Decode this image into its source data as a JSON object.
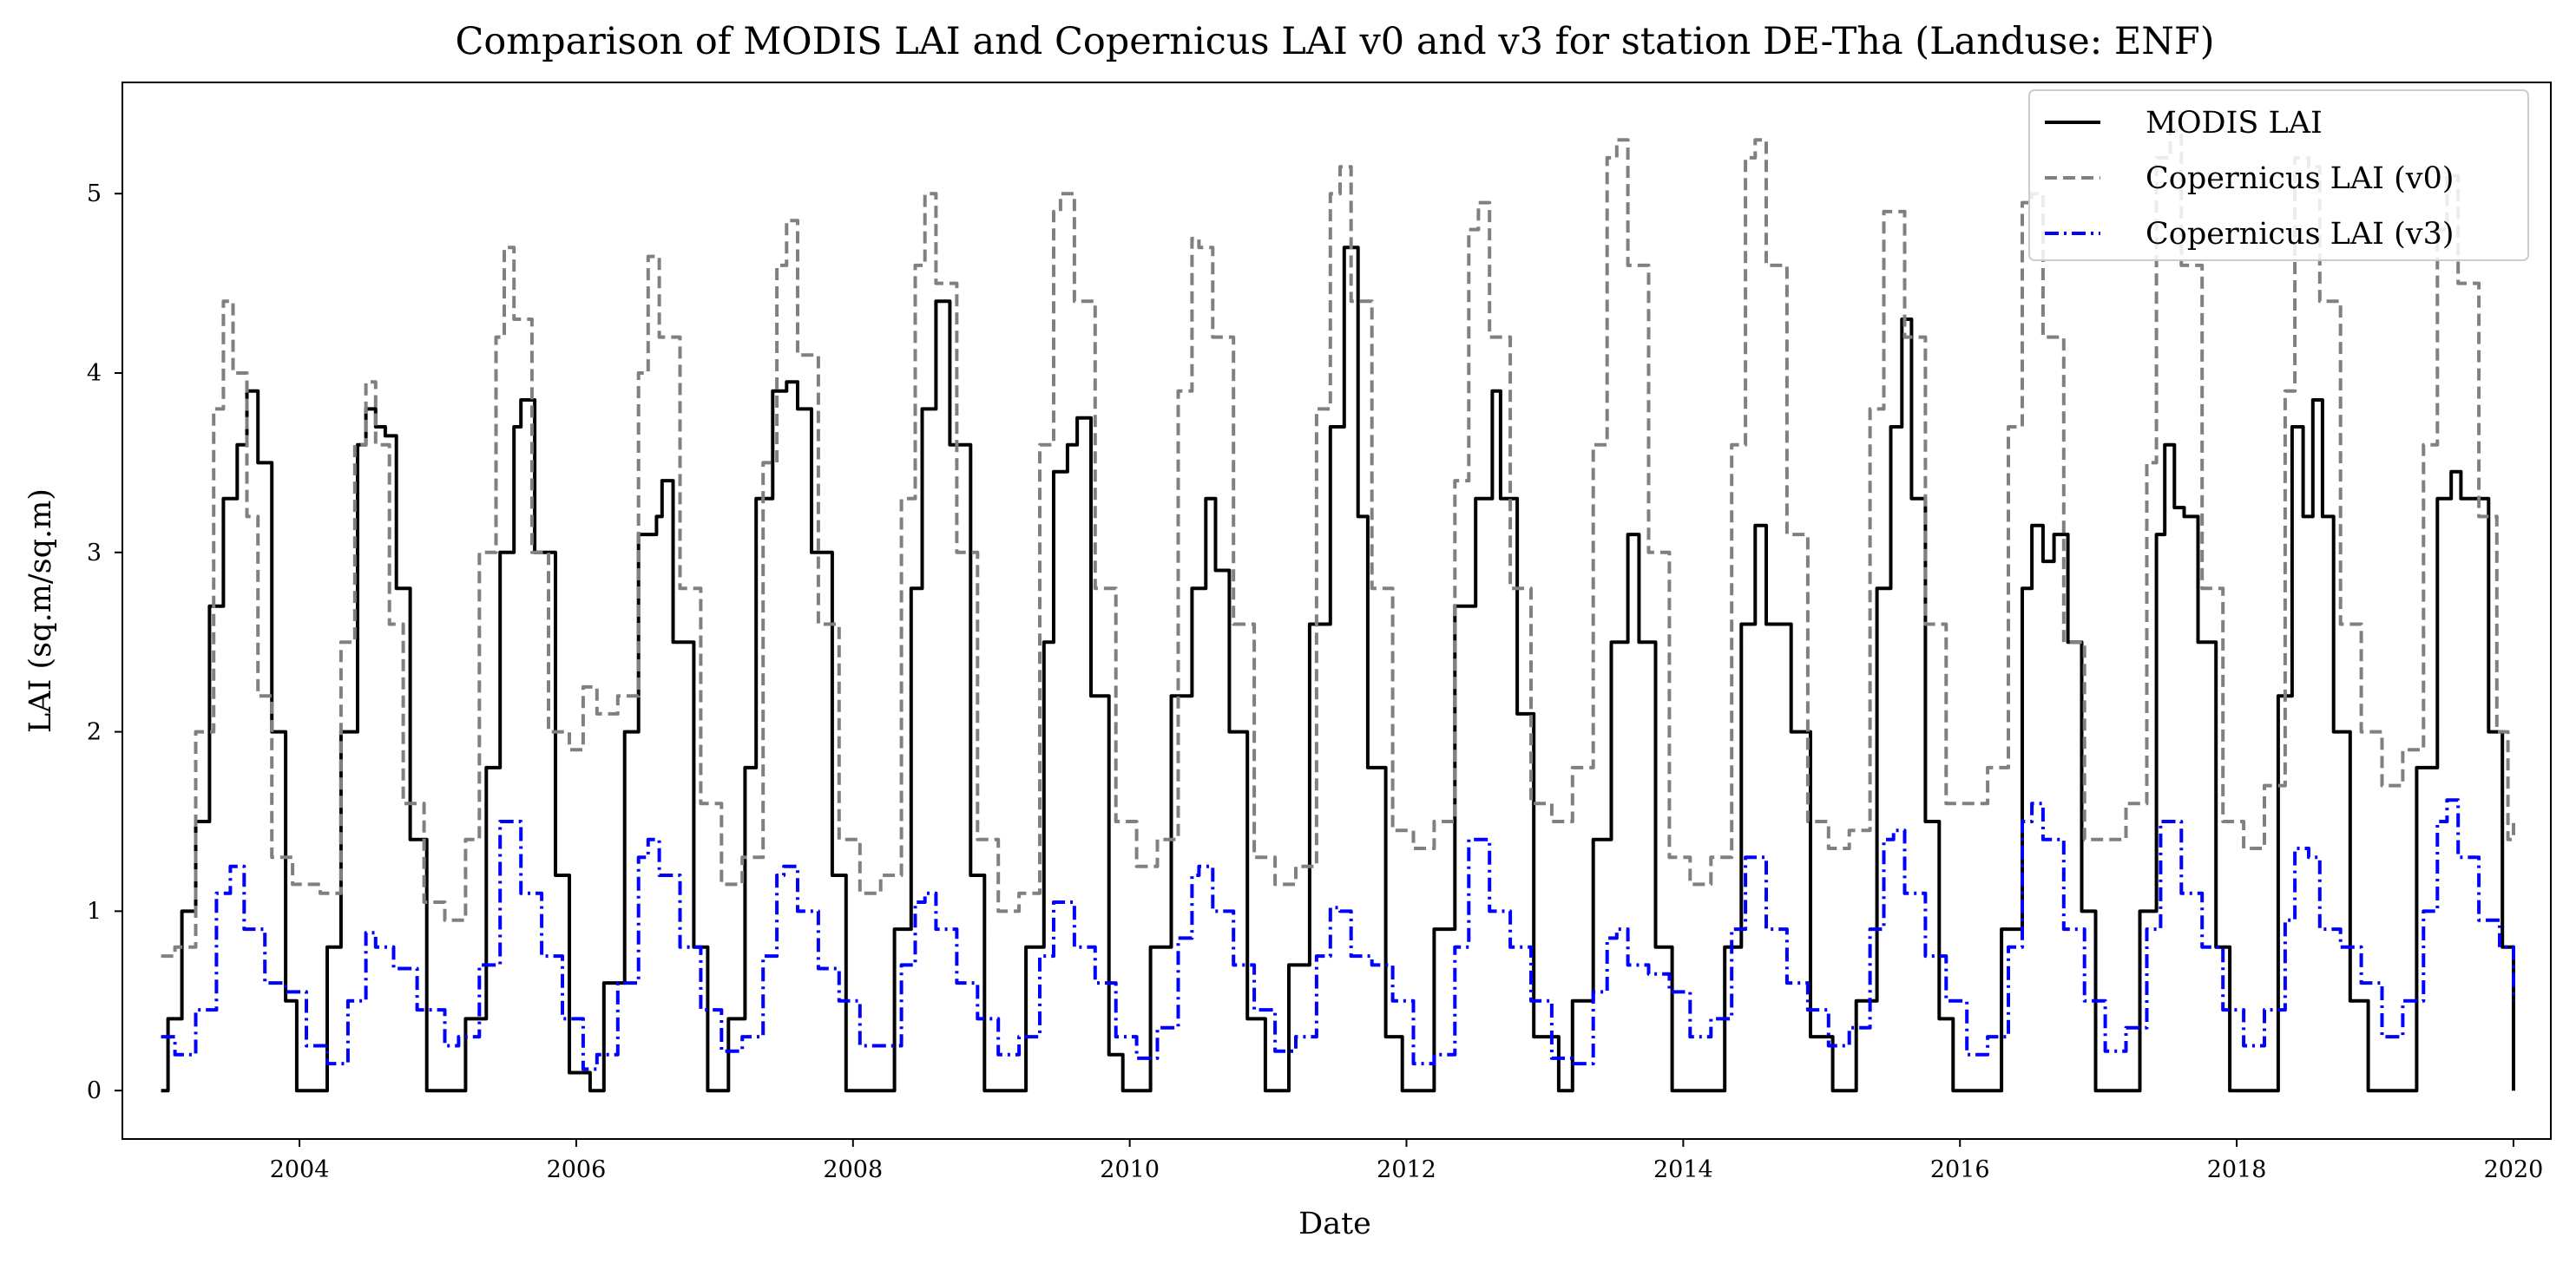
{
  "chart_data": {
    "type": "line",
    "title": "Comparison of MODIS LAI and Copernicus LAI v0 and v3 for station DE-Tha (Landuse: ENF)",
    "xlabel": "Date",
    "ylabel": "LAI (sq.m/sq.m)",
    "xlim": [
      2002.72,
      2020.27
    ],
    "ylim": [
      -0.27,
      5.62
    ],
    "x_ticks": [
      2004,
      2006,
      2008,
      2010,
      2012,
      2014,
      2016,
      2018,
      2020
    ],
    "x_tick_labels": [
      "2004",
      "2006",
      "2008",
      "2010",
      "2012",
      "2014",
      "2016",
      "2018",
      "2020"
    ],
    "y_ticks": [
      0,
      1,
      2,
      3,
      4,
      5
    ],
    "y_tick_labels": [
      "0",
      "1",
      "2",
      "3",
      "4",
      "5"
    ],
    "grid": false,
    "legend_position": "top-right",
    "series": [
      {
        "name": "MODIS LAI",
        "color": "#000000",
        "style": "solid",
        "x": [
          2003.0,
          2003.05,
          2003.15,
          2003.25,
          2003.35,
          2003.45,
          2003.55,
          2003.62,
          2003.7,
          2003.8,
          2003.9,
          2003.98,
          2004.1,
          2004.2,
          2004.3,
          2004.42,
          2004.48,
          2004.55,
          2004.62,
          2004.7,
          2004.8,
          2004.92,
          2005.1,
          2005.2,
          2005.35,
          2005.45,
          2005.55,
          2005.6,
          2005.7,
          2005.85,
          2005.95,
          2006.1,
          2006.2,
          2006.35,
          2006.45,
          2006.58,
          2006.62,
          2006.7,
          2006.85,
          2006.95,
          2007.1,
          2007.22,
          2007.3,
          2007.42,
          2007.52,
          2007.6,
          2007.7,
          2007.85,
          2007.95,
          2008.15,
          2008.3,
          2008.42,
          2008.5,
          2008.6,
          2008.7,
          2008.85,
          2008.95,
          2009.15,
          2009.25,
          2009.38,
          2009.45,
          2009.55,
          2009.62,
          2009.72,
          2009.85,
          2009.95,
          2010.15,
          2010.3,
          2010.45,
          2010.55,
          2010.62,
          2010.72,
          2010.85,
          2010.98,
          2011.15,
          2011.3,
          2011.45,
          2011.55,
          2011.65,
          2011.72,
          2011.85,
          2011.97,
          2012.2,
          2012.35,
          2012.5,
          2012.62,
          2012.68,
          2012.8,
          2012.92,
          2013.1,
          2013.2,
          2013.35,
          2013.48,
          2013.6,
          2013.68,
          2013.8,
          2013.92,
          2014.12,
          2014.3,
          2014.42,
          2014.52,
          2014.6,
          2014.68,
          2014.78,
          2014.92,
          2015.08,
          2015.25,
          2015.4,
          2015.5,
          2015.58,
          2015.65,
          2015.75,
          2015.85,
          2015.95,
          2016.1,
          2016.3,
          2016.45,
          2016.52,
          2016.6,
          2016.68,
          2016.78,
          2016.88,
          2016.98,
          2017.15,
          2017.3,
          2017.42,
          2017.48,
          2017.55,
          2017.62,
          2017.72,
          2017.85,
          2017.95,
          2018.12,
          2018.3,
          2018.4,
          2018.48,
          2018.55,
          2018.62,
          2018.7,
          2018.82,
          2018.95,
          2019.15,
          2019.3,
          2019.45,
          2019.55,
          2019.62,
          2019.72,
          2019.82,
          2019.92,
          2020.0
        ],
        "y": [
          0.0,
          0.4,
          1.0,
          1.5,
          2.7,
          3.3,
          3.6,
          3.9,
          3.5,
          2.0,
          0.5,
          0.0,
          0.0,
          0.8,
          2.0,
          3.6,
          3.8,
          3.7,
          3.65,
          2.8,
          1.4,
          0.0,
          0.0,
          0.4,
          1.8,
          3.0,
          3.7,
          3.85,
          3.0,
          1.2,
          0.1,
          0.0,
          0.6,
          2.0,
          3.1,
          3.2,
          3.4,
          2.5,
          0.8,
          0.0,
          0.4,
          1.8,
          3.3,
          3.9,
          3.95,
          3.8,
          3.0,
          1.2,
          0.0,
          0.0,
          0.9,
          2.8,
          3.8,
          4.4,
          3.6,
          1.2,
          0.0,
          0.0,
          0.8,
          2.5,
          3.45,
          3.6,
          3.75,
          2.2,
          0.2,
          0.0,
          0.8,
          2.2,
          2.8,
          3.3,
          2.9,
          2.0,
          0.4,
          0.0,
          0.7,
          2.6,
          3.7,
          4.7,
          3.2,
          1.8,
          0.3,
          0.0,
          0.9,
          2.7,
          3.3,
          3.9,
          3.3,
          2.1,
          0.3,
          0.0,
          0.5,
          1.4,
          2.5,
          3.1,
          2.5,
          0.8,
          0.0,
          0.0,
          0.8,
          2.6,
          3.15,
          2.6,
          2.6,
          2.0,
          0.3,
          0.0,
          0.5,
          2.8,
          3.7,
          4.3,
          3.3,
          1.5,
          0.4,
          0.0,
          0.0,
          0.9,
          2.8,
          3.15,
          2.95,
          3.1,
          2.5,
          1.0,
          0.0,
          0.0,
          1.0,
          3.1,
          3.6,
          3.25,
          3.2,
          2.5,
          0.8,
          0.0,
          0.0,
          2.2,
          3.7,
          3.2,
          3.85,
          3.2,
          2.0,
          0.5,
          0.0,
          0.0,
          1.8,
          3.3,
          3.45,
          3.3,
          3.3,
          2.0,
          0.8,
          0.0
        ]
      },
      {
        "name": "Copernicus LAI (v0)",
        "color": "#808080",
        "style": "dashed",
        "x": [
          2003.0,
          2003.1,
          2003.25,
          2003.38,
          2003.45,
          2003.52,
          2003.62,
          2003.7,
          2003.8,
          2003.95,
          2004.15,
          2004.3,
          2004.4,
          2004.48,
          2004.55,
          2004.65,
          2004.75,
          2004.9,
          2005.05,
          2005.2,
          2005.3,
          2005.42,
          2005.48,
          2005.55,
          2005.68,
          2005.8,
          2005.95,
          2006.05,
          2006.15,
          2006.3,
          2006.45,
          2006.52,
          2006.6,
          2006.75,
          2006.9,
          2007.05,
          2007.2,
          2007.35,
          2007.45,
          2007.52,
          2007.6,
          2007.75,
          2007.9,
          2008.05,
          2008.2,
          2008.35,
          2008.45,
          2008.52,
          2008.6,
          2008.75,
          2008.9,
          2009.05,
          2009.2,
          2009.35,
          2009.45,
          2009.5,
          2009.6,
          2009.75,
          2009.9,
          2010.05,
          2010.2,
          2010.35,
          2010.45,
          2010.5,
          2010.6,
          2010.75,
          2010.9,
          2011.05,
          2011.2,
          2011.35,
          2011.45,
          2011.52,
          2011.6,
          2011.75,
          2011.9,
          2012.05,
          2012.2,
          2012.35,
          2012.45,
          2012.52,
          2012.6,
          2012.75,
          2012.9,
          2013.05,
          2013.2,
          2013.35,
          2013.45,
          2013.52,
          2013.6,
          2013.75,
          2013.9,
          2014.05,
          2014.2,
          2014.35,
          2014.45,
          2014.52,
          2014.6,
          2014.75,
          2014.9,
          2015.05,
          2015.2,
          2015.35,
          2015.45,
          2015.52,
          2015.6,
          2015.75,
          2015.9,
          2016.05,
          2016.2,
          2016.35,
          2016.45,
          2016.52,
          2016.6,
          2016.75,
          2016.9,
          2017.05,
          2017.2,
          2017.35,
          2017.42,
          2017.52,
          2017.6,
          2017.75,
          2017.9,
          2018.05,
          2018.2,
          2018.35,
          2018.42,
          2018.52,
          2018.6,
          2018.75,
          2018.9,
          2019.05,
          2019.2,
          2019.35,
          2019.45,
          2019.52,
          2019.6,
          2019.75,
          2019.88,
          2019.96,
          2020.0
        ],
        "y": [
          0.75,
          0.8,
          2.0,
          3.8,
          4.4,
          4.0,
          3.2,
          2.2,
          1.3,
          1.15,
          1.1,
          2.5,
          3.6,
          3.95,
          3.6,
          2.6,
          1.6,
          1.05,
          0.95,
          1.4,
          3.0,
          4.2,
          4.7,
          4.3,
          3.0,
          2.0,
          1.9,
          2.25,
          2.1,
          2.2,
          4.0,
          4.65,
          4.2,
          2.8,
          1.6,
          1.15,
          1.3,
          3.5,
          4.6,
          4.85,
          4.1,
          2.6,
          1.4,
          1.1,
          1.2,
          3.3,
          4.6,
          5.0,
          4.5,
          3.0,
          1.4,
          1.0,
          1.1,
          3.6,
          4.9,
          5.0,
          4.4,
          2.8,
          1.5,
          1.25,
          1.4,
          3.9,
          4.75,
          4.7,
          4.2,
          2.6,
          1.3,
          1.15,
          1.25,
          3.8,
          5.0,
          5.15,
          4.4,
          2.8,
          1.45,
          1.35,
          1.5,
          3.4,
          4.8,
          4.95,
          4.2,
          2.8,
          1.6,
          1.5,
          1.8,
          3.6,
          5.2,
          5.3,
          4.6,
          3.0,
          1.3,
          1.15,
          1.3,
          3.6,
          5.2,
          5.3,
          4.6,
          3.1,
          1.5,
          1.35,
          1.45,
          3.8,
          4.9,
          4.9,
          4.2,
          2.6,
          1.6,
          1.6,
          1.8,
          3.7,
          4.95,
          5.0,
          4.2,
          2.5,
          1.4,
          1.4,
          1.6,
          3.5,
          5.2,
          5.35,
          4.6,
          2.8,
          1.5,
          1.35,
          1.7,
          3.9,
          5.2,
          5.15,
          4.4,
          2.6,
          2.0,
          1.7,
          1.9,
          3.6,
          4.8,
          5.1,
          4.5,
          3.2,
          2.0,
          1.4,
          1.5
        ]
      },
      {
        "name": "Copernicus LAI (v3)",
        "color": "#0000ff",
        "style": "dash-dot",
        "x": [
          2003.0,
          2003.1,
          2003.25,
          2003.4,
          2003.5,
          2003.6,
          2003.75,
          2003.9,
          2004.05,
          2004.2,
          2004.35,
          2004.48,
          2004.55,
          2004.68,
          2004.85,
          2005.05,
          2005.15,
          2005.3,
          2005.45,
          2005.5,
          2005.6,
          2005.75,
          2005.9,
          2006.05,
          2006.15,
          2006.3,
          2006.45,
          2006.52,
          2006.6,
          2006.75,
          2006.9,
          2007.05,
          2007.2,
          2007.35,
          2007.45,
          2007.5,
          2007.6,
          2007.75,
          2007.9,
          2008.05,
          2008.2,
          2008.35,
          2008.45,
          2008.52,
          2008.6,
          2008.75,
          2008.9,
          2009.05,
          2009.2,
          2009.35,
          2009.45,
          2009.5,
          2009.6,
          2009.75,
          2009.9,
          2010.05,
          2010.2,
          2010.35,
          2010.45,
          2010.5,
          2010.6,
          2010.75,
          2010.9,
          2011.05,
          2011.2,
          2011.35,
          2011.45,
          2011.52,
          2011.6,
          2011.75,
          2011.9,
          2012.05,
          2012.2,
          2012.35,
          2012.45,
          2012.52,
          2012.6,
          2012.75,
          2012.9,
          2013.05,
          2013.2,
          2013.35,
          2013.45,
          2013.52,
          2013.6,
          2013.75,
          2013.9,
          2014.05,
          2014.2,
          2014.35,
          2014.45,
          2014.52,
          2014.6,
          2014.75,
          2014.9,
          2015.05,
          2015.2,
          2015.35,
          2015.45,
          2015.52,
          2015.6,
          2015.75,
          2015.9,
          2016.05,
          2016.2,
          2016.35,
          2016.45,
          2016.52,
          2016.6,
          2016.75,
          2016.9,
          2017.05,
          2017.2,
          2017.35,
          2017.45,
          2017.5,
          2017.6,
          2017.75,
          2017.9,
          2018.05,
          2018.2,
          2018.35,
          2018.42,
          2018.52,
          2018.6,
          2018.75,
          2018.9,
          2019.05,
          2019.2,
          2019.35,
          2019.45,
          2019.52,
          2019.6,
          2019.75,
          2019.9,
          2020.0
        ],
        "y": [
          0.3,
          0.2,
          0.45,
          1.1,
          1.25,
          0.9,
          0.6,
          0.55,
          0.25,
          0.15,
          0.5,
          0.88,
          0.8,
          0.68,
          0.45,
          0.25,
          0.3,
          0.7,
          1.5,
          1.5,
          1.1,
          0.75,
          0.4,
          0.12,
          0.2,
          0.6,
          1.3,
          1.4,
          1.2,
          0.8,
          0.45,
          0.22,
          0.3,
          0.75,
          1.2,
          1.25,
          1.0,
          0.68,
          0.5,
          0.25,
          0.25,
          0.7,
          1.05,
          1.1,
          0.9,
          0.6,
          0.4,
          0.2,
          0.3,
          0.75,
          1.05,
          1.05,
          0.8,
          0.6,
          0.3,
          0.18,
          0.35,
          0.85,
          1.2,
          1.25,
          1.0,
          0.7,
          0.45,
          0.22,
          0.3,
          0.75,
          1.02,
          1.0,
          0.75,
          0.7,
          0.5,
          0.15,
          0.2,
          0.8,
          1.4,
          1.4,
          1.0,
          0.8,
          0.5,
          0.18,
          0.15,
          0.55,
          0.85,
          0.9,
          0.7,
          0.65,
          0.55,
          0.3,
          0.4,
          0.9,
          1.3,
          1.3,
          0.9,
          0.6,
          0.45,
          0.25,
          0.35,
          0.9,
          1.4,
          1.45,
          1.1,
          0.75,
          0.5,
          0.2,
          0.3,
          0.8,
          1.5,
          1.6,
          1.4,
          0.9,
          0.5,
          0.22,
          0.35,
          0.9,
          1.5,
          1.5,
          1.1,
          0.8,
          0.45,
          0.25,
          0.45,
          0.95,
          1.35,
          1.3,
          0.9,
          0.8,
          0.6,
          0.3,
          0.5,
          1.0,
          1.5,
          1.62,
          1.3,
          0.95,
          0.8,
          0.5
        ]
      }
    ]
  }
}
